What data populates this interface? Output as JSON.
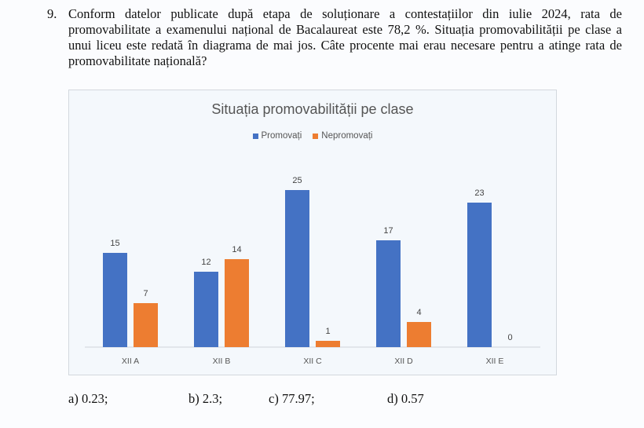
{
  "question": {
    "number": "9.",
    "text": "Conform datelor publicate după etapa de soluționare a contestațiilor din iulie 2024, rata de promovabilitate a examenului național de Bacalaureat este 78,2 %. Situația promovabilității pe clase a unui liceu este redată în diagrama de mai jos. Câte procente mai erau necesare pentru a atinge rata de promovabilitate națională?"
  },
  "chart_data": {
    "type": "bar",
    "title": "Situația promovabilității pe clase",
    "categories": [
      "XII A",
      "XII B",
      "XII C",
      "XII D",
      "XII E"
    ],
    "series": [
      {
        "name": "Promovați",
        "values": [
          15,
          12,
          25,
          17,
          23
        ],
        "color": "#4472c4"
      },
      {
        "name": "Nepromovați",
        "values": [
          7,
          14,
          1,
          4,
          0
        ],
        "color": "#ed7d31"
      }
    ],
    "xlabel": "",
    "ylabel": "",
    "ylim": [
      0,
      25
    ],
    "grid": false,
    "legend": "top",
    "data_labels": true
  },
  "answers": [
    {
      "label": "a)  0.23;"
    },
    {
      "label": "b) 2.3;"
    },
    {
      "label": "c) 77.97;"
    },
    {
      "label": "d) 0.57"
    }
  ]
}
